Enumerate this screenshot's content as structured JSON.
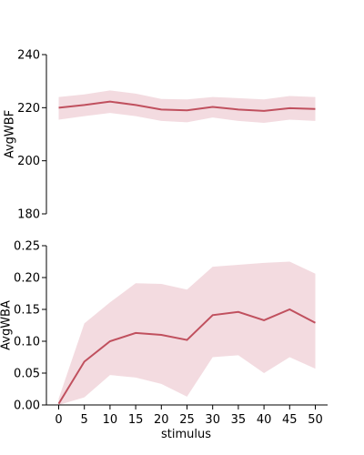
{
  "colors": {
    "line": "#c0505e",
    "band": "#e8b8c2",
    "axis": "#000000"
  },
  "chart_data": [
    {
      "type": "line",
      "title": "",
      "xlabel": "",
      "ylabel": "AvgWBF",
      "ylim": [
        180,
        240
      ],
      "yticks": [
        "180",
        "200",
        "220",
        "240"
      ],
      "ytick_values": [
        180,
        200,
        220,
        240
      ],
      "x": [
        0,
        5,
        10,
        15,
        20,
        25,
        30,
        35,
        40,
        45,
        50
      ],
      "series": [
        {
          "values": [
            220,
            221,
            222.3,
            221,
            219.3,
            219,
            220.3,
            219.3,
            218.8,
            219.8,
            219.5
          ],
          "lower": [
            215.5,
            216.8,
            218,
            216.8,
            215,
            214.5,
            216.3,
            215,
            214.3,
            215.5,
            215
          ],
          "upper": [
            224,
            225,
            226.5,
            225.3,
            223.3,
            223.1,
            224,
            223.6,
            223.1,
            224.4,
            224
          ]
        }
      ]
    },
    {
      "type": "line",
      "title": "",
      "xlabel": "stimulus",
      "ylabel": "AvgWBA",
      "ylim": [
        0,
        0.25
      ],
      "yticks": [
        "0.00",
        "0.05",
        "0.10",
        "0.15",
        "0.20",
        "0.25"
      ],
      "ytick_values": [
        0,
        0.05,
        0.1,
        0.15,
        0.2,
        0.25
      ],
      "xticks": [
        "0",
        "5",
        "10",
        "15",
        "20",
        "25",
        "30",
        "35",
        "40",
        "45",
        "50"
      ],
      "x": [
        0,
        5,
        10,
        15,
        20,
        25,
        30,
        35,
        40,
        45,
        50
      ],
      "series": [
        {
          "values": [
            0.002,
            0.068,
            0.1,
            0.113,
            0.11,
            0.102,
            0.141,
            0.146,
            0.133,
            0.15,
            0.129
          ],
          "lower": [
            0,
            0.012,
            0.047,
            0.043,
            0.033,
            0.013,
            0.075,
            0.078,
            0.05,
            0.075,
            0.057
          ],
          "upper": [
            0.01,
            0.128,
            0.161,
            0.191,
            0.19,
            0.181,
            0.217,
            0.22,
            0.223,
            0.225,
            0.206
          ]
        }
      ]
    }
  ]
}
